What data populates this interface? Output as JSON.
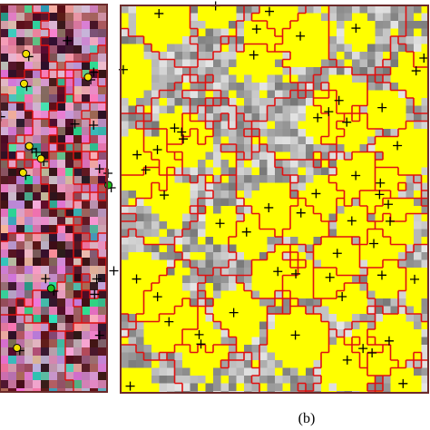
{
  "caption": "(b)"
}
